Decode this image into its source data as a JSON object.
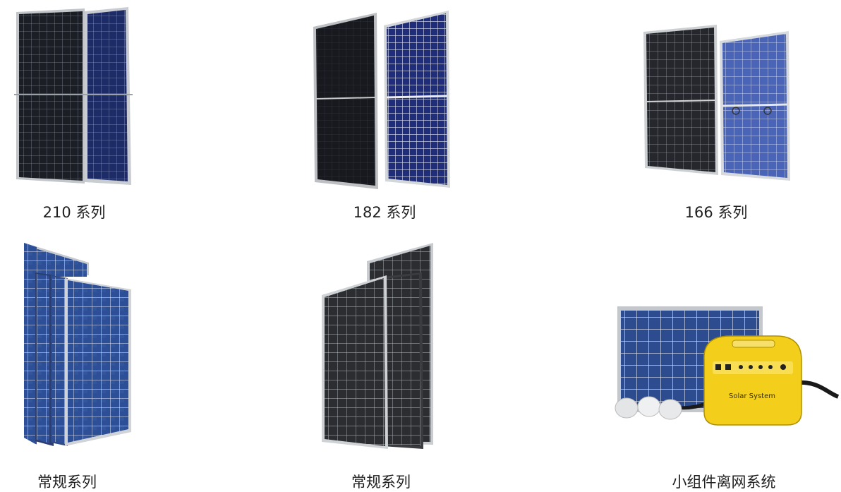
{
  "products": [
    {
      "label": "210 系列",
      "image": "solar-panel-210-bifacial"
    },
    {
      "label": "182 系列",
      "image": "solar-panel-182-pair"
    },
    {
      "label": "166 系列",
      "image": "solar-panel-166-pair"
    },
    {
      "label": "常规系列",
      "image": "solar-panel-poly-stack"
    },
    {
      "label": "常规系列",
      "image": "solar-panel-mono-stack"
    },
    {
      "label": "小组件离网系统",
      "image": "solar-home-system-kit"
    }
  ],
  "kit_device_label": "Solar System",
  "colors": {
    "mono_cell": "#1c1f26",
    "poly_cell": "#2a4f97",
    "blue_back": "#2c3e8f",
    "frame": "#bfc3c7",
    "kit_yellow": "#f3cf1c"
  }
}
